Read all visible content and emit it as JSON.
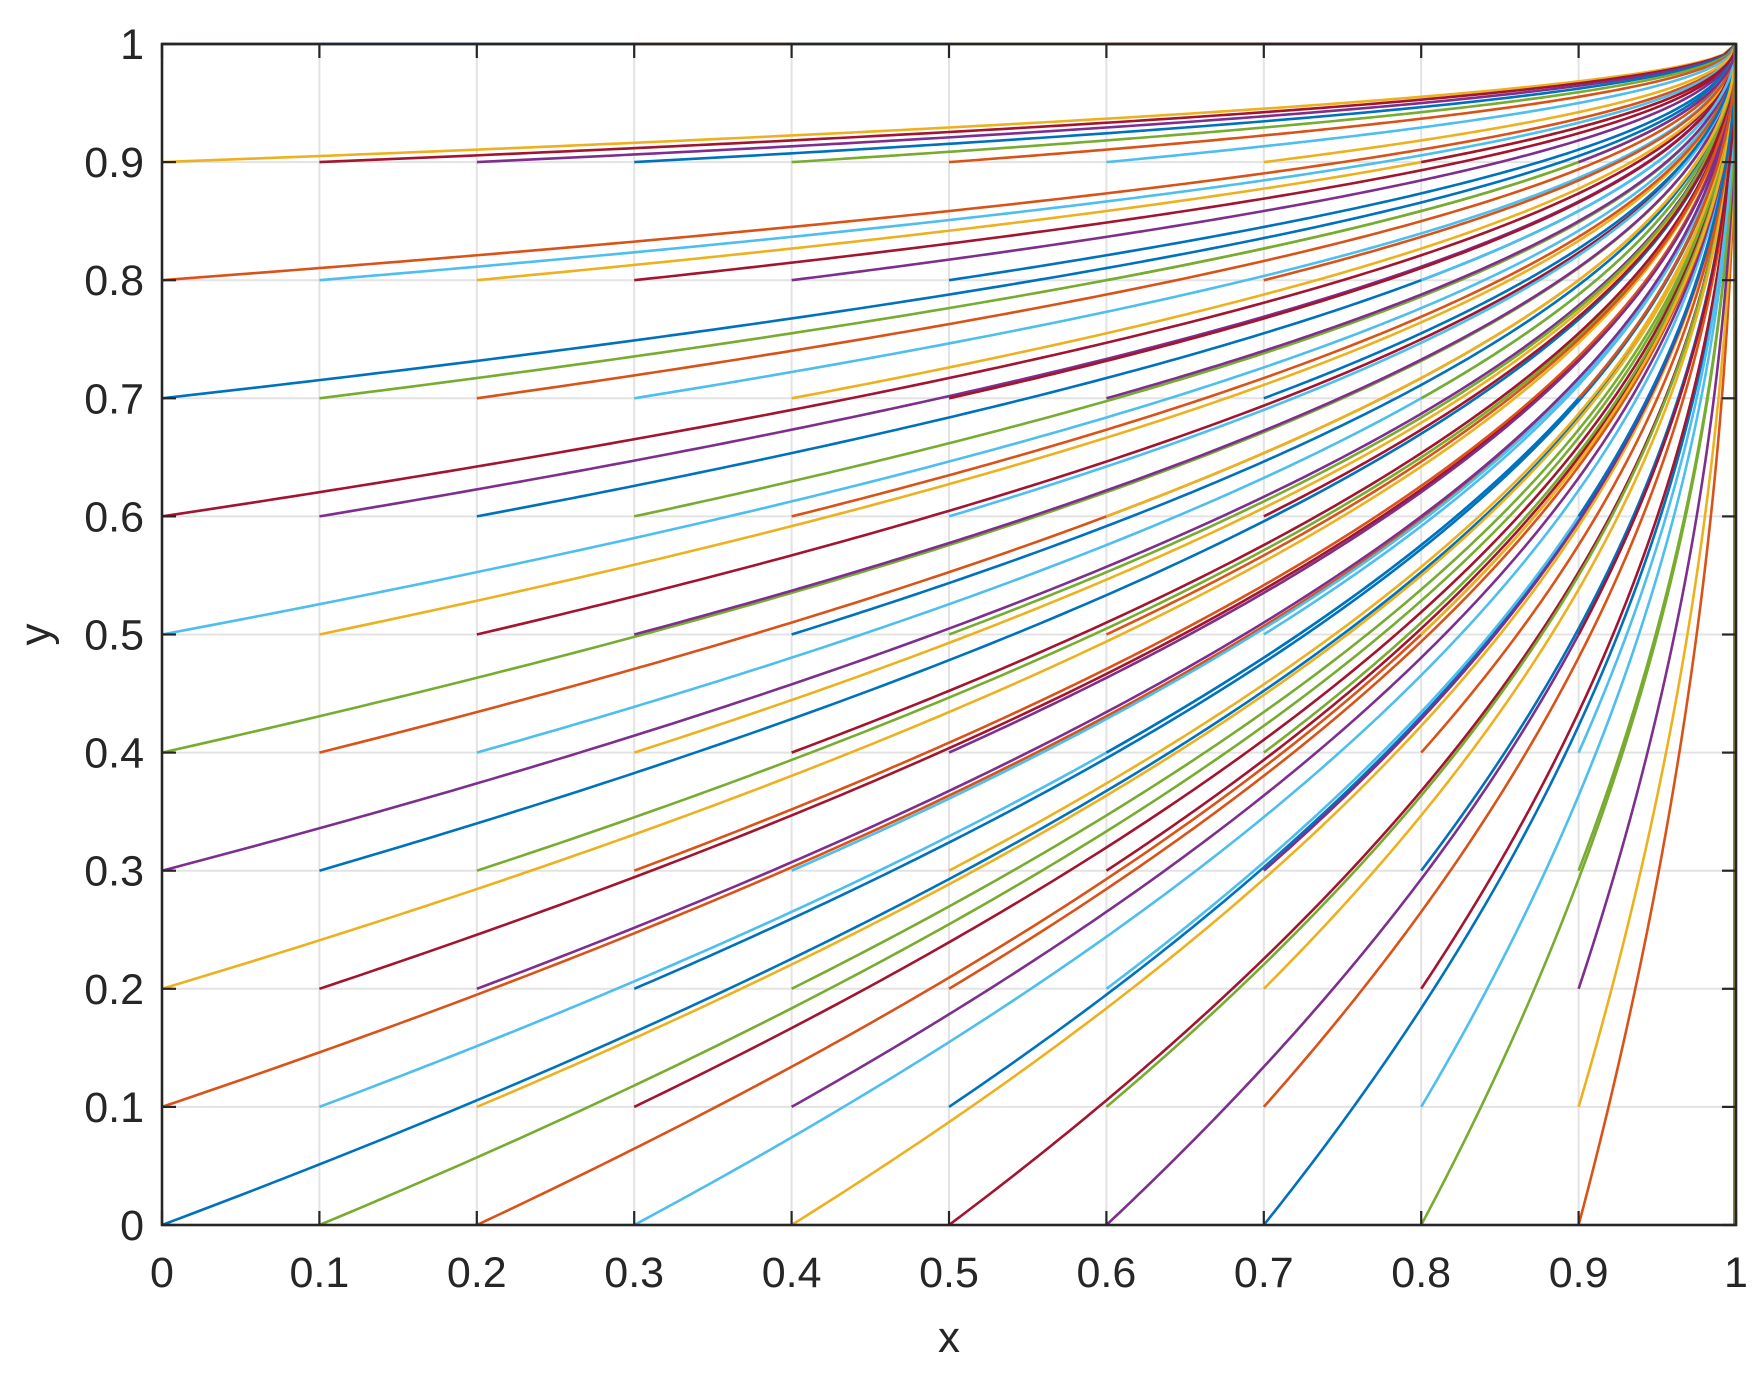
{
  "chart_data": {
    "type": "line",
    "title": "",
    "xlabel": "x",
    "ylabel": "y",
    "xlim": [
      0,
      1
    ],
    "ylim": [
      0,
      1
    ],
    "xticks": [
      0,
      0.1,
      0.2,
      0.3,
      0.4,
      0.5,
      0.6,
      0.7,
      0.8,
      0.9,
      1
    ],
    "yticks": [
      0,
      0.1,
      0.2,
      0.3,
      0.4,
      0.5,
      0.6,
      0.7,
      0.8,
      0.9,
      1
    ],
    "xtick_labels": [
      "0",
      "0.1",
      "0.2",
      "0.3",
      "0.4",
      "0.5",
      "0.6",
      "0.7",
      "0.8",
      "0.9",
      "1"
    ],
    "ytick_labels": [
      "0",
      "0.1",
      "0.2",
      "0.3",
      "0.4",
      "0.5",
      "0.6",
      "0.7",
      "0.8",
      "0.9",
      "1"
    ],
    "grid": true,
    "box": true,
    "series_family": "y = 1 - (1 - y0) * ((1 - x) / (1 - x0))^a, x from x0 to 1",
    "x0_values": [
      0,
      0.1,
      0.2,
      0.3,
      0.4,
      0.5,
      0.6,
      0.7,
      0.8,
      0.9
    ],
    "y0_values": [
      0,
      0.1,
      0.2,
      0.3,
      0.4,
      0.5,
      0.6,
      0.7,
      0.8,
      0.9,
      1
    ],
    "exponent_a": 0.5,
    "colors": [
      "#0072BD",
      "#D95319",
      "#EDB120",
      "#7E2F8E",
      "#77AC30",
      "#4DBEEE",
      "#A2142F"
    ]
  }
}
